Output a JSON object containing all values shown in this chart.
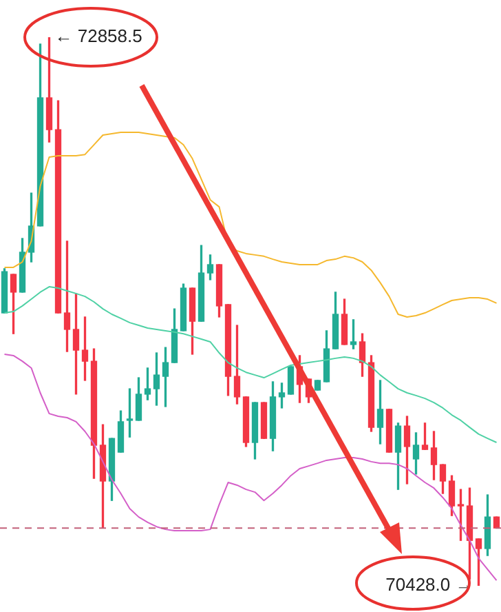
{
  "chart_data": {
    "type": "candlestick",
    "categories": [
      null,
      null,
      null,
      null,
      null,
      null,
      null,
      null,
      null,
      null,
      null,
      null,
      null,
      null,
      null,
      null,
      null,
      null,
      null,
      null,
      null,
      null,
      null,
      null,
      null,
      null,
      null,
      null,
      null,
      null,
      null,
      null,
      null,
      null,
      null,
      null,
      null,
      null,
      null,
      null,
      null,
      null,
      null,
      null,
      null,
      null,
      null,
      null,
      null,
      null,
      null,
      null,
      null,
      null,
      null,
      null
    ],
    "ohlc": [
      [
        71637,
        71833,
        71637,
        71820
      ],
      [
        71808,
        71808,
        71545,
        71729
      ],
      [
        71729,
        71967,
        71729,
        71906
      ],
      [
        71906,
        72168,
        71863,
        72022
      ],
      [
        72022,
        72828,
        72022,
        72590
      ],
      [
        72590,
        72858.5,
        72394,
        72449
      ],
      [
        72449,
        72577,
        71637,
        71637
      ],
      [
        71637,
        71955,
        71466,
        71564
      ],
      [
        71564,
        71723,
        71277,
        71472
      ],
      [
        71472,
        71619,
        71338,
        71423
      ],
      [
        71423,
        71478,
        70904,
        71051
      ],
      [
        71051,
        71142,
        70684,
        70892
      ],
      [
        70892,
        71081,
        70806,
        71081
      ],
      [
        71020,
        71203,
        71020,
        71155
      ],
      [
        71161,
        71301,
        71087,
        71167
      ],
      [
        71161,
        71350,
        71161,
        71277
      ],
      [
        71277,
        71393,
        71252,
        71301
      ],
      [
        71301,
        71460,
        71228,
        71362
      ],
      [
        71356,
        71484,
        71222,
        71417
      ],
      [
        71417,
        71655,
        71417,
        71564
      ],
      [
        71558,
        71765,
        71558,
        71747
      ],
      [
        71747,
        71747,
        71454,
        71600
      ],
      [
        71600,
        71936,
        71600,
        71814
      ],
      [
        71814,
        71894,
        71784,
        71851
      ],
      [
        71851,
        71851,
        71619,
        71668
      ],
      [
        71674,
        71674,
        71271,
        71356
      ],
      [
        71356,
        71582,
        71234,
        71265
      ],
      [
        71265,
        71265,
        71045,
        71063
      ],
      [
        71063,
        71240,
        70990,
        71240
      ],
      [
        71240,
        71240,
        71081,
        71081
      ],
      [
        71081,
        71332,
        71026,
        71265
      ],
      [
        71265,
        71326,
        71216,
        71283
      ],
      [
        71277,
        71399,
        71277,
        71399
      ],
      [
        71399,
        71448,
        71240,
        71320
      ],
      [
        71344,
        71344,
        71240,
        71265
      ],
      [
        71295,
        71338,
        71295,
        71338
      ],
      [
        71332,
        71558,
        71332,
        71478
      ],
      [
        71478,
        71729,
        71478,
        71631
      ],
      [
        71631,
        71698,
        71497,
        71497
      ],
      [
        71497,
        71607,
        71478,
        71509
      ],
      [
        71509,
        71545,
        71356,
        71417
      ],
      [
        71417,
        71448,
        71112,
        71130
      ],
      [
        71130,
        71338,
        71057,
        71210
      ],
      [
        71210,
        71210,
        71020,
        71020
      ],
      [
        71020,
        71149,
        70855,
        71136
      ],
      [
        71136,
        71179,
        70880,
        71045
      ],
      [
        70990,
        71106,
        70923,
        71051
      ],
      [
        71051,
        71149,
        71032,
        71032
      ],
      [
        71039,
        71112,
        70898,
        70965
      ],
      [
        70965,
        70965,
        70837,
        70892
      ],
      [
        70892,
        70916,
        70739,
        70782
      ],
      [
        70788,
        70855,
        70629,
        70782
      ],
      [
        70782,
        70861,
        70458,
        70629
      ],
      [
        70636,
        70636,
        70428,
        70593
      ],
      [
        70593,
        70831,
        70562,
        70733
      ],
      [
        70733,
        70733,
        70684,
        70684
      ]
    ],
    "colors": [
      "#22ab94",
      "#f23645",
      "#22ab94",
      "#22ab94",
      "#22ab94",
      "#f23645",
      "#f23645",
      "#f23645",
      "#f23645",
      "#f23645",
      "#f23645",
      "#f23645",
      "#22ab94",
      "#22ab94",
      "#22ab94",
      "#22ab94",
      "#22ab94",
      "#22ab94",
      "#22ab94",
      "#22ab94",
      "#22ab94",
      "#f23645",
      "#22ab94",
      "#22ab94",
      "#f23645",
      "#f23645",
      "#f23645",
      "#f23645",
      "#22ab94",
      "#f23645",
      "#22ab94",
      "#22ab94",
      "#22ab94",
      "#f23645",
      "#f23645",
      "#22ab94",
      "#22ab94",
      "#22ab94",
      "#f23645",
      "#22ab94",
      "#f23645",
      "#f23645",
      "#22ab94",
      "#f23645",
      "#22ab94",
      "#f23645",
      "#22ab94",
      "#f23645",
      "#f23645",
      "#f23645",
      "#f23645",
      "#f23645",
      "#f23645",
      "#f23645",
      "#22ab94",
      "#f23645"
    ],
    "series": [
      {
        "type": "line",
        "color": "#f5b82e",
        "values": [
          71839,
          71839,
          71863,
          71955,
          72199,
          72327,
          72333,
          72333,
          72333,
          72339,
          72382,
          72425,
          72431,
          72437,
          72437,
          72437,
          72431,
          72425,
          72419,
          72413,
          72382,
          72321,
          72230,
          72138,
          72107,
          71942,
          71912,
          71900,
          71894,
          71888,
          71875,
          71863,
          71857,
          71851,
          71851,
          71851,
          71869,
          71875,
          71888,
          71881,
          71863,
          71826,
          71771,
          71710,
          71631,
          71619,
          71625,
          71637,
          71655,
          71674,
          71692,
          71698,
          71704,
          71704,
          71698,
          71680
        ]
      },
      {
        "type": "line",
        "color": "#4fd1a5",
        "values": [
          71637,
          71643,
          71668,
          71698,
          71729,
          71753,
          71747,
          71735,
          71723,
          71710,
          71686,
          71655,
          71631,
          71613,
          71594,
          71582,
          71570,
          71564,
          71558,
          71552,
          71545,
          71533,
          71521,
          71509,
          71460,
          71417,
          71393,
          71374,
          71362,
          71350,
          71368,
          71387,
          71405,
          71411,
          71417,
          71423,
          71429,
          71436,
          71442,
          71436,
          71423,
          71399,
          71362,
          71332,
          71301,
          71283,
          71271,
          71258,
          71240,
          71216,
          71185,
          71161,
          71130,
          71100,
          71081,
          71063
        ]
      },
      {
        "type": "line",
        "color": "#d45fc8",
        "values": [
          71454,
          71448,
          71423,
          71393,
          71283,
          71191,
          71179,
          71173,
          71155,
          71112,
          71057,
          70978,
          70898,
          70837,
          70770,
          70733,
          70709,
          70690,
          70678,
          70672,
          70672,
          70672,
          70672,
          70678,
          70788,
          70886,
          70874,
          70855,
          70843,
          70806,
          70837,
          70874,
          70916,
          70947,
          70959,
          70971,
          70984,
          70990,
          70996,
          70996,
          70990,
          70978,
          70971,
          70971,
          70965,
          70947,
          70916,
          70886,
          70861,
          70819,
          70770,
          70697,
          70629,
          70550,
          70501,
          70452
        ]
      }
    ],
    "ref_lines": [
      {
        "axis": "y",
        "value": 70684,
        "color": "#c2607a",
        "line_style": "dashed"
      }
    ],
    "annotations": [
      "← 72858.5",
      "70428.0 →"
    ]
  }
}
